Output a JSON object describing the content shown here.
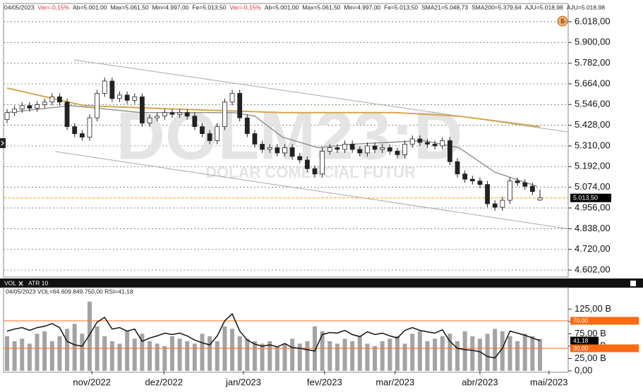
{
  "header": {
    "items": [
      {
        "text": "04/05/2023",
        "color": "#222222"
      },
      {
        "text": "Var=-0,15%",
        "color": "#e03030"
      },
      {
        "text": "Ab=5.001,00",
        "color": "#222222"
      },
      {
        "text": "Max=5.061,50",
        "color": "#222222"
      },
      {
        "text": "Min=4.997,00",
        "color": "#222222"
      },
      {
        "text": "Fe=5.013,50",
        "color": "#222222"
      },
      {
        "text": "Var=-0,15%",
        "color": "#e03030"
      },
      {
        "text": "Ab=5.001,00",
        "color": "#222222"
      },
      {
        "text": "Max=5.061,50",
        "color": "#222222"
      },
      {
        "text": "Min=4.997,00",
        "color": "#222222"
      },
      {
        "text": "Fe=5.013,50",
        "color": "#222222"
      },
      {
        "text": "SMA21=5.048,73",
        "color": "#222222"
      },
      {
        "text": "SMA200=5.379,64",
        "color": "#222222"
      },
      {
        "text": "AJU=5.018,98",
        "color": "#222222"
      },
      {
        "text": "AJU=5.018,98",
        "color": "#222222"
      }
    ]
  },
  "chart_data": [
    {
      "type": "candlestick",
      "watermark": "DOLM23:D",
      "watermark_subtitle": "DOLAR COMERCIAL FUTUR",
      "open": [
        5460,
        5500,
        5520,
        5540,
        5525,
        5545,
        5560,
        5590,
        5560,
        5420,
        5380,
        5360,
        5470,
        5610,
        5680,
        5580,
        5600,
        5570,
        5590,
        5440,
        5470,
        5480,
        5500,
        5490,
        5500,
        5480,
        5420,
        5380,
        5340,
        5420,
        5560,
        5610,
        5470,
        5380,
        5320,
        5290,
        5300,
        5270,
        5300,
        5250,
        5230,
        5180,
        5150,
        5280,
        5300,
        5290,
        5320,
        5290,
        5270,
        5310,
        5290,
        5300,
        5280,
        5260,
        5320,
        5350,
        5330,
        5320,
        5310,
        5340,
        5220,
        5150,
        5120,
        5110,
        5090,
        4980,
        4960,
        5000,
        5110,
        5100,
        5080,
        5001
      ],
      "high": [
        5520,
        5540,
        5560,
        5560,
        5565,
        5580,
        5610,
        5610,
        5580,
        5440,
        5400,
        5490,
        5630,
        5700,
        5700,
        5620,
        5620,
        5610,
        5610,
        5490,
        5500,
        5520,
        5520,
        5520,
        5520,
        5500,
        5440,
        5400,
        5440,
        5580,
        5630,
        5630,
        5490,
        5400,
        5340,
        5320,
        5320,
        5320,
        5320,
        5270,
        5250,
        5200,
        5300,
        5320,
        5320,
        5340,
        5340,
        5310,
        5330,
        5330,
        5320,
        5320,
        5300,
        5340,
        5370,
        5370,
        5350,
        5340,
        5360,
        5360,
        5240,
        5170,
        5140,
        5130,
        5110,
        5000,
        5020,
        5130,
        5130,
        5120,
        5100,
        5061.5
      ],
      "low": [
        5440,
        5480,
        5500,
        5505,
        5505,
        5525,
        5540,
        5540,
        5400,
        5360,
        5340,
        5340,
        5450,
        5590,
        5560,
        5560,
        5550,
        5550,
        5420,
        5420,
        5450,
        5460,
        5470,
        5470,
        5460,
        5400,
        5360,
        5320,
        5320,
        5400,
        5540,
        5450,
        5360,
        5300,
        5270,
        5270,
        5250,
        5250,
        5230,
        5210,
        5160,
        5130,
        5130,
        5260,
        5270,
        5270,
        5270,
        5250,
        5250,
        5270,
        5270,
        5260,
        5240,
        5240,
        5300,
        5310,
        5300,
        5290,
        5290,
        5200,
        5130,
        5100,
        5090,
        5070,
        4960,
        4940,
        4940,
        4980,
        5080,
        5060,
        5030,
        4997
      ],
      "close": [
        5500,
        5520,
        5540,
        5525,
        5545,
        5560,
        5590,
        5560,
        5420,
        5380,
        5360,
        5470,
        5610,
        5680,
        5580,
        5600,
        5570,
        5590,
        5440,
        5470,
        5480,
        5500,
        5490,
        5500,
        5480,
        5420,
        5380,
        5340,
        5420,
        5560,
        5610,
        5470,
        5380,
        5320,
        5290,
        5300,
        5270,
        5300,
        5250,
        5230,
        5180,
        5150,
        5280,
        5300,
        5290,
        5320,
        5290,
        5270,
        5310,
        5290,
        5300,
        5280,
        5260,
        5320,
        5350,
        5330,
        5320,
        5310,
        5340,
        5220,
        5150,
        5120,
        5110,
        5090,
        4980,
        4960,
        5000,
        5110,
        5100,
        5080,
        5050,
        5013.5
      ],
      "up_color": "#ffffff",
      "down_color": "#222222",
      "overlays": [
        {
          "color": "#d4a64a",
          "x": [
            0,
            10.3,
            22.6,
            36.7,
            51.7,
            60.2,
            71
          ],
          "values": [
            5640,
            5540,
            5520,
            5500,
            5500,
            5480,
            5420
          ]
        },
        {
          "color": "#8c8c8c",
          "x": [
            0,
            8.5,
            17.9,
            25.4,
            30.1,
            33,
            36.7,
            41.4,
            46.1,
            55.5,
            60.2,
            65,
            70.6
          ],
          "values": [
            5500,
            5540,
            5500,
            5500,
            5500,
            5480,
            5360,
            5300,
            5320,
            5340,
            5300,
            5160,
            5080
          ]
        }
      ],
      "trendlines": [
        {
          "color": "#a8a8a8",
          "x": [
            8.9,
            75.1
          ],
          "values": [
            5801,
            5387
          ]
        },
        {
          "color": "#a8a8a8",
          "x": [
            6.4,
            75.1
          ],
          "values": [
            5278,
            4835
          ]
        }
      ],
      "last_price": {
        "value": 5013.5,
        "label": "5.013,50",
        "color": "#ff9a1a"
      },
      "xlim": [
        -0.47,
        74.76
      ],
      "xticks": [
        {
          "value": 11.3,
          "label": "nov/2022"
        },
        {
          "value": 20.9,
          "label": "dez/2022"
        },
        {
          "value": 31.5,
          "label": "jan/2023",
          "color": "#1a3adf"
        },
        {
          "value": 42.3,
          "label": "fev/2023"
        },
        {
          "value": 51.7,
          "label": "mar/2023"
        },
        {
          "value": 63,
          "label": "abr/2023"
        },
        {
          "value": 72.2,
          "label": "mai/2023"
        }
      ],
      "ylim": [
        4562,
        6122
      ],
      "yticks": [
        {
          "value": 6018,
          "label": "6.018,00"
        },
        {
          "value": 5900,
          "label": "5.900,00"
        },
        {
          "value": 5782,
          "label": "5.782,00"
        },
        {
          "value": 5664,
          "label": "5.664,00"
        },
        {
          "value": 5546,
          "label": "5.546,00"
        },
        {
          "value": 5428,
          "label": "5.428,00"
        },
        {
          "value": 5310,
          "label": "5.310,00"
        },
        {
          "value": 5192,
          "label": "5.192,00"
        },
        {
          "value": 5074,
          "label": "5.074,00"
        },
        {
          "value": 4956,
          "label": "4.956,00"
        },
        {
          "value": 4838,
          "label": "4.838,00"
        },
        {
          "value": 4720,
          "label": "4.720,00"
        },
        {
          "value": 4602,
          "label": "4.602,00"
        }
      ],
      "grid": true
    },
    {
      "type": "volume_rsi",
      "tabs": [
        "VOL",
        "ATR 10"
      ],
      "info": "04/05/2023  VOL=64.609.849.750,00  RSI=41,18",
      "values": [
        70,
        60,
        65,
        55,
        75,
        80,
        60,
        70,
        85,
        95,
        75,
        140,
        90,
        70,
        60,
        55,
        80,
        65,
        75,
        60,
        55,
        50,
        70,
        65,
        60,
        55,
        75,
        70,
        60,
        90,
        85,
        70,
        65,
        60,
        55,
        60,
        50,
        55,
        65,
        55,
        60,
        90,
        80,
        60,
        55,
        65,
        60,
        70,
        55,
        50,
        60,
        65,
        70,
        55,
        75,
        80,
        60,
        65,
        70,
        75,
        60,
        80,
        70,
        65,
        75,
        85,
        80,
        70,
        60,
        75,
        70,
        64.60984975
      ],
      "color": "#a3a3a3",
      "ylim": [
        0,
        154
      ],
      "yticks": [
        {
          "value": 125,
          "label": "125,00 B"
        },
        {
          "value": 100,
          "label": "100,00 B"
        },
        {
          "value": 75,
          "label": "75,00 B"
        },
        {
          "value": 50,
          "label": "50,00 B"
        },
        {
          "value": 25,
          "label": "25,00 B"
        },
        {
          "value": 0,
          "label": "0,00"
        }
      ],
      "rsi": {
        "axis": "y2",
        "color": "#111111",
        "values": [
          55,
          58,
          60,
          56,
          60,
          62,
          66,
          60,
          40,
          35,
          33,
          50,
          68,
          75,
          58,
          60,
          55,
          58,
          40,
          45,
          48,
          52,
          50,
          52,
          48,
          42,
          38,
          35,
          48,
          70,
          80,
          55,
          42,
          36,
          33,
          35,
          32,
          37,
          31,
          30,
          28,
          26,
          50,
          53,
          52,
          56,
          50,
          47,
          54,
          50,
          52,
          48,
          45,
          56,
          60,
          56,
          54,
          52,
          57,
          40,
          30,
          28,
          27,
          25,
          18,
          16,
          30,
          55,
          52,
          49,
          45,
          41.18
        ],
        "last_value_label": "41,18"
      },
      "y2lim": [
        -2.8,
        107.9
      ],
      "levels": [
        {
          "value": 70,
          "label": "70,00"
        },
        {
          "value": 30,
          "label": "30,00"
        }
      ],
      "level_color": "#ff6a13"
    }
  ]
}
